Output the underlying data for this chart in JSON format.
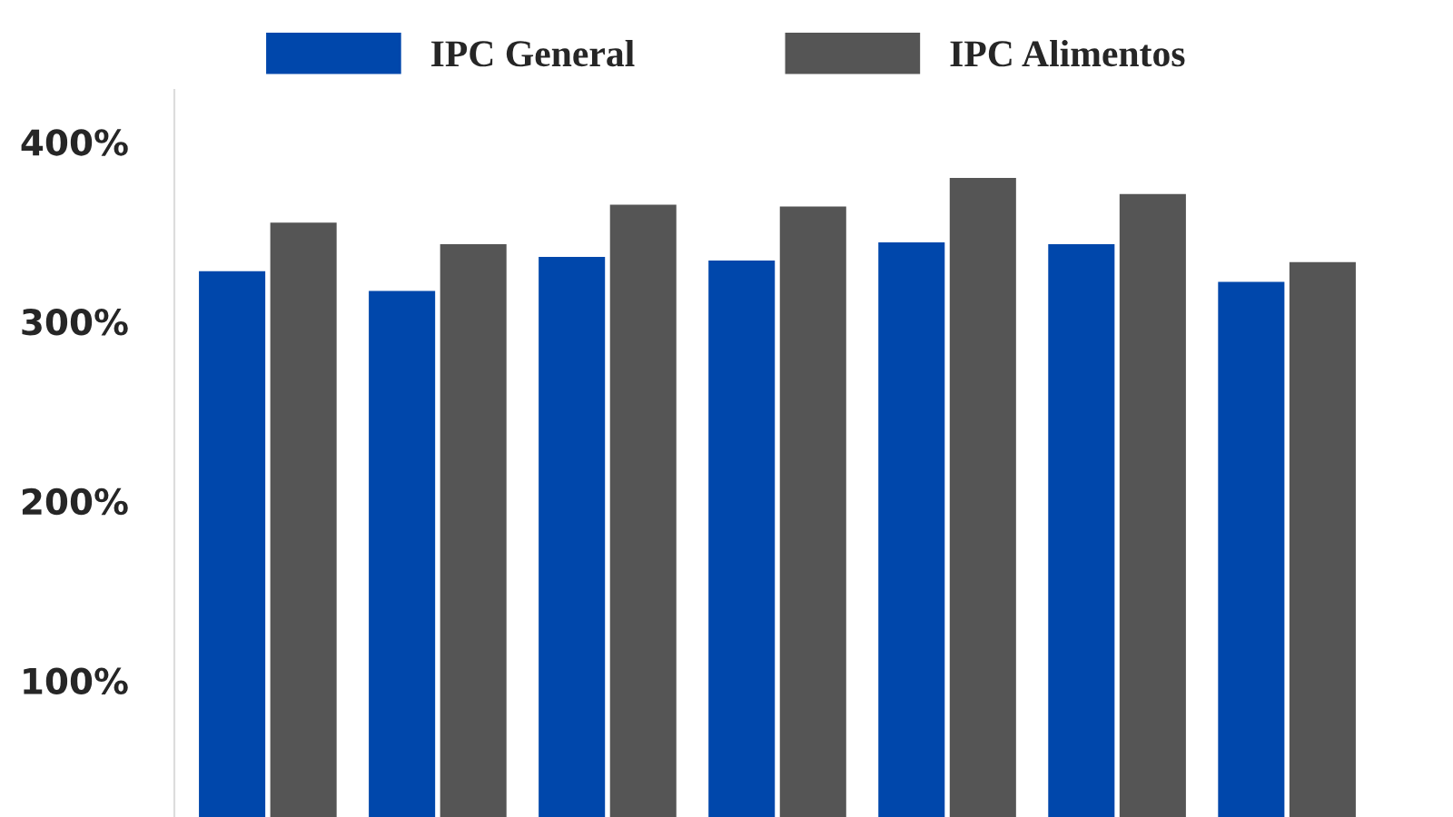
{
  "chart_data": {
    "type": "bar",
    "categories": [
      null,
      null,
      null,
      null,
      null,
      null,
      null
    ],
    "series": [
      {
        "name": "IPC General",
        "color": "#0047ab",
        "values": [
          328,
          317,
          336,
          334,
          344,
          343,
          322
        ]
      },
      {
        "name": "IPC Alimentos",
        "color": "#555555",
        "values": [
          355,
          343,
          365,
          364,
          380,
          371,
          333
        ]
      }
    ],
    "ylim": [
      24,
      429
    ],
    "yticks": [
      {
        "value": 100,
        "label": "100%"
      },
      {
        "value": 200,
        "label": "200%"
      },
      {
        "value": 300,
        "label": "300%"
      },
      {
        "value": 400,
        "label": "400%"
      }
    ],
    "tick_labels": "y",
    "legend": "top",
    "grid": false
  }
}
